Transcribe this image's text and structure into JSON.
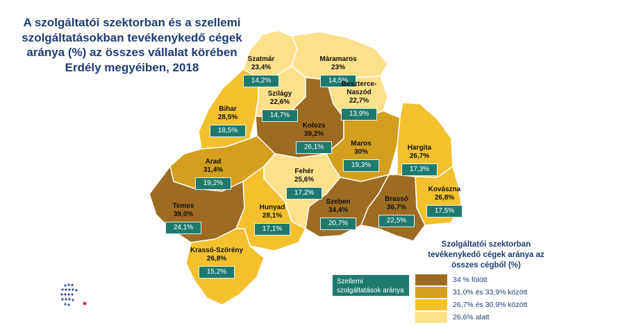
{
  "title": "A szolgáltatói szektorban és a szellemi szolgáltatásokban tevékenykedő cégek aránya (%) az összes vállalat körében Erdély megyéiben, 2018",
  "colors": {
    "over34": "#9e6b22",
    "c31_33": "#d39f1e",
    "c26_30": "#f3c12e",
    "under26": "#fde08a",
    "teal": "#1f7a6e",
    "title": "#1f3b73"
  },
  "counties": [
    {
      "id": "szatmar",
      "name": "Szatmár",
      "value": "23,4%",
      "service": "14,2%"
    },
    {
      "id": "maramaros",
      "name": "Máramaros",
      "value": "23%",
      "service": "14,5%"
    },
    {
      "id": "bihar",
      "name": "Bihar",
      "value": "28,5%",
      "service": "18,5%"
    },
    {
      "id": "szilagy",
      "name": "Szilágy",
      "value": "22,6%",
      "service": "14,7%"
    },
    {
      "id": "beszterce",
      "name": "Beszterce-\nNaszód",
      "value": "22,7%",
      "service": "13,9%"
    },
    {
      "id": "kolozs",
      "name": "Kolozs",
      "value": "39,2%",
      "service": "26,1%"
    },
    {
      "id": "maros",
      "name": "Maros",
      "value": "30%",
      "service": "19,3%"
    },
    {
      "id": "hargita",
      "name": "Hargita",
      "value": "26,7%",
      "service": "17,3%"
    },
    {
      "id": "arad",
      "name": "Arad",
      "value": "31,4%",
      "service": "19,2%"
    },
    {
      "id": "feher",
      "name": "Fehér",
      "value": "25,6%",
      "service": "17,2%"
    },
    {
      "id": "kovaszna",
      "name": "Kovászna",
      "value": "26,8%",
      "service": "17,5%"
    },
    {
      "id": "temes",
      "name": "Temes",
      "value": "39,0%",
      "service": "24,1%"
    },
    {
      "id": "hunyad",
      "name": "Hunyad",
      "value": "28,1%",
      "service": "17,1%"
    },
    {
      "id": "szeben",
      "name": "Szeben",
      "value": "34,4%",
      "service": "20,7%"
    },
    {
      "id": "brasso",
      "name": "Brassó",
      "value": "36,7%",
      "service": "22,5%"
    },
    {
      "id": "krasso",
      "name": "Krassó-Szörény",
      "value": "26,8%",
      "service": "15,2%"
    }
  ],
  "legend": {
    "title": "Szolgáltatói szektorban tevékenykedő cégek aránya az összes cégből (%)",
    "teal_label": "Szellemi szolgáltatások aránya",
    "items": [
      {
        "label": "34 % fölött",
        "color": "#9e6b22"
      },
      {
        "label": "31,0% és 33,9% között",
        "color": "#d39f1e"
      },
      {
        "label": "26,7% és 30,9% között",
        "color": "#f3c12e"
      },
      {
        "label": "26,6% alatt",
        "color": "#fde08a"
      }
    ]
  }
}
